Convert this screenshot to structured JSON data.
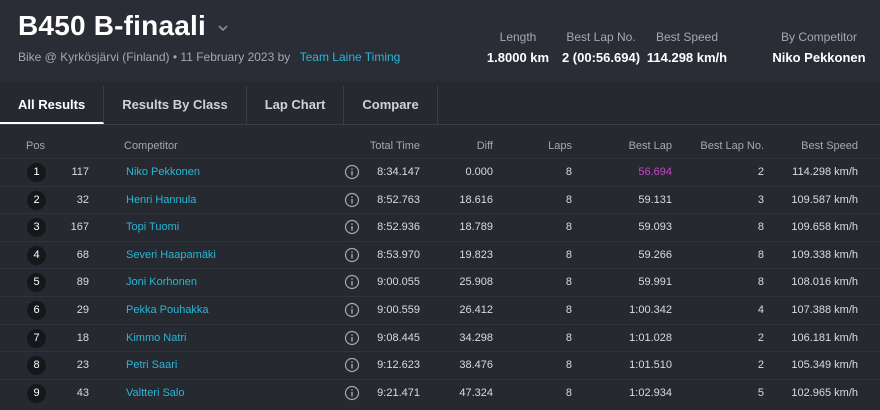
{
  "header": {
    "title": "B450 B-finaali",
    "subtitle_text": "Bike @ Kyrkösjärvi (Finland) • 11 February 2023 by",
    "subtitle_link": "Team Laine Timing",
    "stats": [
      {
        "label": "Length",
        "value": "1.8000 km"
      },
      {
        "label": "Best Lap No.",
        "value": "2 (00:56.694)"
      },
      {
        "label": "Best Speed",
        "value": "114.298 km/h"
      },
      {
        "label": "By Competitor",
        "value": "Niko Pekkonen"
      }
    ]
  },
  "tabs": [
    "All Results",
    "Results By Class",
    "Lap Chart",
    "Compare"
  ],
  "columns": {
    "pos": "Pos",
    "competitor": "Competitor",
    "total_time": "Total Time",
    "diff": "Diff",
    "laps": "Laps",
    "best_lap": "Best Lap",
    "best_lap_no": "Best Lap No.",
    "best_speed": "Best Speed"
  },
  "rows": [
    {
      "pos": "1",
      "num": "117",
      "name": "Niko Pekkonen",
      "total": "8:34.147",
      "diff": "0.000",
      "laps": "8",
      "best": "56.694",
      "best_no": "2",
      "speed": "114.298 km/h"
    },
    {
      "pos": "2",
      "num": "32",
      "name": "Henri Hannula",
      "total": "8:52.763",
      "diff": "18.616",
      "laps": "8",
      "best": "59.131",
      "best_no": "3",
      "speed": "109.587 km/h"
    },
    {
      "pos": "3",
      "num": "167",
      "name": "Topi Tuomi",
      "total": "8:52.936",
      "diff": "18.789",
      "laps": "8",
      "best": "59.093",
      "best_no": "8",
      "speed": "109.658 km/h"
    },
    {
      "pos": "4",
      "num": "68",
      "name": "Severi Haapamäki",
      "total": "8:53.970",
      "diff": "19.823",
      "laps": "8",
      "best": "59.266",
      "best_no": "8",
      "speed": "109.338 km/h"
    },
    {
      "pos": "5",
      "num": "89",
      "name": "Joni Korhonen",
      "total": "9:00.055",
      "diff": "25.908",
      "laps": "8",
      "best": "59.991",
      "best_no": "8",
      "speed": "108.016 km/h"
    },
    {
      "pos": "6",
      "num": "29",
      "name": "Pekka Pouhakka",
      "total": "9:00.559",
      "diff": "26.412",
      "laps": "8",
      "best": "1:00.342",
      "best_no": "4",
      "speed": "107.388 km/h"
    },
    {
      "pos": "7",
      "num": "18",
      "name": "Kimmo Natri",
      "total": "9:08.445",
      "diff": "34.298",
      "laps": "8",
      "best": "1:01.028",
      "best_no": "2",
      "speed": "106.181 km/h"
    },
    {
      "pos": "8",
      "num": "23",
      "name": "Petri Saari",
      "total": "9:12.623",
      "diff": "38.476",
      "laps": "8",
      "best": "1:01.510",
      "best_no": "2",
      "speed": "105.349 km/h"
    },
    {
      "pos": "9",
      "num": "43",
      "name": "Valtteri Salo",
      "total": "9:21.471",
      "diff": "47.324",
      "laps": "8",
      "best": "1:02.934",
      "best_no": "5",
      "speed": "102.965 km/h"
    }
  ],
  "colors": {
    "link": "#29b6d6",
    "overall_best": "#c944c9",
    "background": "#262930"
  },
  "icons": {
    "title_dropdown": "chevron-down-icon",
    "row_info": "info-icon"
  }
}
